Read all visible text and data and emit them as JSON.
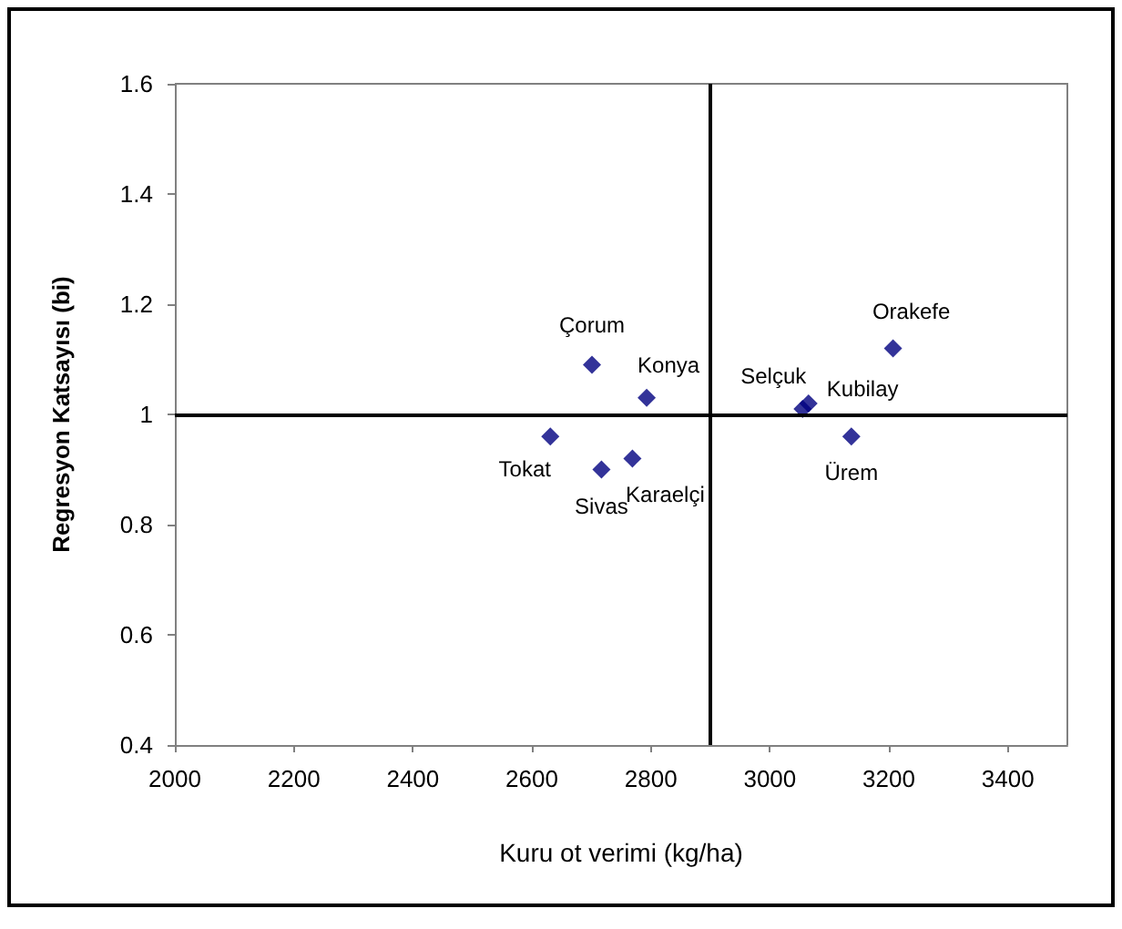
{
  "chart_data": {
    "type": "scatter",
    "xlabel": "Kuru ot verimi (kg/ha)",
    "ylabel": "Regresyon Katsayısı (bi)",
    "series": [
      {
        "color": "#000080",
        "x": [
          2701,
          2793,
          2631,
          2717,
          2769,
          3055,
          3065,
          3137,
          3207
        ],
        "values": [
          1.09,
          1.03,
          0.96,
          0.9,
          0.92,
          1.01,
          1.02,
          0.96,
          1.12
        ]
      }
    ],
    "annotations": [
      {
        "text": "Çorum",
        "x": 2701,
        "y": 1.09
      },
      {
        "text": "Konya",
        "x": 2793,
        "y": 1.03
      },
      {
        "text": "Tokat",
        "x": 2631,
        "y": 0.96
      },
      {
        "text": "Sivas",
        "x": 2717,
        "y": 0.9
      },
      {
        "text": "Karaelçi",
        "x": 2769,
        "y": 0.92
      },
      {
        "text": "Selçuk",
        "x": 3055,
        "y": 1.01
      },
      {
        "text": "Kubilay",
        "x": 3065,
        "y": 1.02
      },
      {
        "text": "Ürem",
        "x": 3137,
        "y": 0.96
      },
      {
        "text": "Orakefe",
        "x": 3207,
        "y": 1.12
      }
    ],
    "ref_lines": [
      {
        "axis": "x",
        "value": 2900,
        "color": "#000000"
      },
      {
        "axis": "y",
        "value": 1,
        "color": "#000000"
      }
    ],
    "xlim": [
      2000,
      3500
    ],
    "ylim": [
      0.4,
      1.6
    ],
    "xticks": [
      2000,
      2200,
      2400,
      2600,
      2800,
      3000,
      3200,
      3400
    ],
    "yticks": [
      0.4,
      0.6,
      0.8,
      1,
      1.2,
      1.4,
      1.6
    ],
    "marker": "diamond",
    "grid": false
  }
}
